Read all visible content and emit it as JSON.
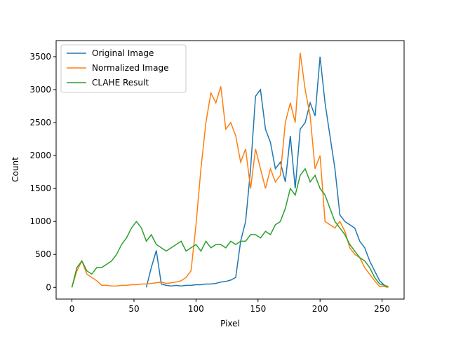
{
  "chart_data": {
    "type": "line",
    "xlabel": "Pixel",
    "ylabel": "Count",
    "x": [
      0,
      4,
      8,
      12,
      16,
      20,
      24,
      28,
      32,
      36,
      40,
      44,
      48,
      52,
      56,
      60,
      64,
      68,
      72,
      76,
      80,
      84,
      88,
      92,
      96,
      100,
      104,
      108,
      112,
      116,
      120,
      124,
      128,
      132,
      136,
      140,
      144,
      148,
      152,
      156,
      160,
      164,
      168,
      172,
      176,
      180,
      184,
      188,
      192,
      196,
      200,
      204,
      208,
      212,
      216,
      220,
      224,
      228,
      232,
      236,
      240,
      244,
      248,
      252,
      255
    ],
    "series": [
      {
        "name": "Original Image",
        "color": "#1f77b4",
        "values": [
          null,
          null,
          null,
          null,
          null,
          null,
          null,
          null,
          null,
          null,
          null,
          null,
          null,
          null,
          null,
          0,
          300,
          560,
          50,
          30,
          20,
          30,
          20,
          30,
          30,
          40,
          40,
          50,
          50,
          60,
          80,
          90,
          110,
          150,
          700,
          1000,
          1800,
          2900,
          3000,
          2400,
          2200,
          1800,
          1900,
          1600,
          2300,
          1500,
          2400,
          2500,
          2800,
          2600,
          3500,
          2800,
          2300,
          1800,
          1100,
          1000,
          950,
          900,
          700,
          600,
          400,
          250,
          100,
          30,
          10
        ]
      },
      {
        "name": "Normalized Image",
        "color": "#ff7f0e",
        "values": [
          0,
          250,
          400,
          200,
          150,
          100,
          30,
          30,
          20,
          20,
          30,
          30,
          40,
          40,
          50,
          50,
          60,
          70,
          80,
          60,
          70,
          80,
          100,
          150,
          250,
          950,
          1800,
          2500,
          2950,
          2800,
          3050,
          2400,
          2500,
          2300,
          1900,
          2100,
          1500,
          2100,
          1800,
          1500,
          1800,
          1600,
          1700,
          2500,
          2800,
          2500,
          3560,
          3000,
          2600,
          1800,
          2000,
          1000,
          950,
          900,
          1000,
          850,
          600,
          500,
          450,
          300,
          200,
          100,
          10,
          10,
          0
        ]
      },
      {
        "name": "CLAHE Result",
        "color": "#2ca02c",
        "values": [
          0,
          300,
          400,
          250,
          200,
          300,
          300,
          350,
          400,
          500,
          650,
          750,
          900,
          1000,
          900,
          700,
          800,
          650,
          600,
          550,
          600,
          650,
          700,
          550,
          600,
          650,
          550,
          700,
          600,
          650,
          650,
          600,
          700,
          650,
          700,
          700,
          800,
          800,
          750,
          850,
          800,
          950,
          1000,
          1200,
          1500,
          1400,
          1700,
          1800,
          1600,
          1700,
          1500,
          1400,
          1200,
          1000,
          900,
          800,
          650,
          550,
          450,
          400,
          300,
          150,
          50,
          30,
          10
        ]
      }
    ],
    "xlim": [
      -12.75,
      267.75
    ],
    "ylim": [
      -178,
      3744
    ],
    "xticks": [
      0,
      50,
      100,
      150,
      200,
      250
    ],
    "yticks": [
      0,
      500,
      1000,
      1500,
      2000,
      2500,
      3000,
      3500
    ],
    "legend": "upper left"
  }
}
